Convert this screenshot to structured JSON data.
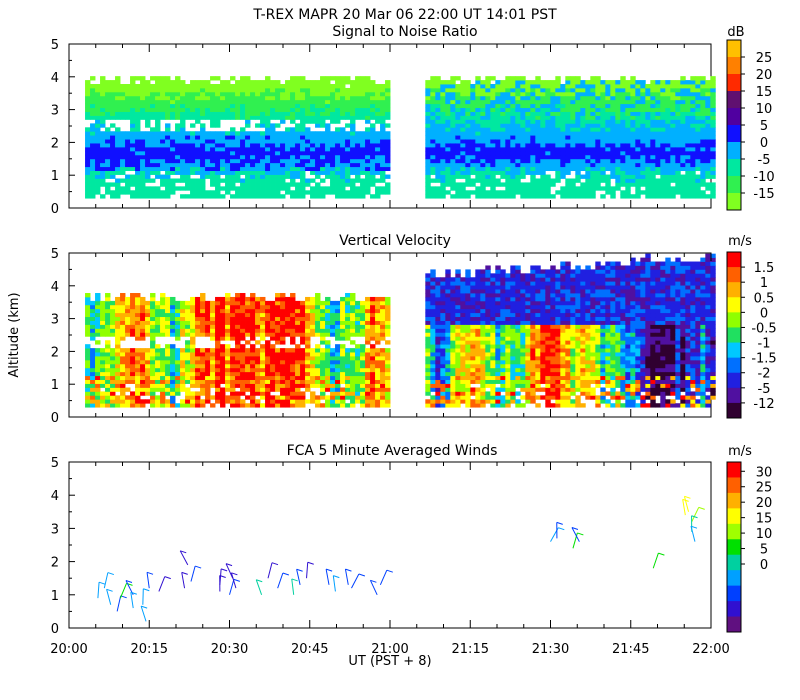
{
  "header": {
    "title": "T-REX   MAPR 20 Mar 06   22:00 UT   14:01   PST"
  },
  "chart_data": [
    {
      "type": "heatmap",
      "title": "Signal to Noise Ratio",
      "ylim": [
        0,
        5
      ],
      "yticks": [
        "0",
        "1",
        "2",
        "3",
        "4",
        "5"
      ],
      "colorbar": {
        "unit": "dB",
        "labels": [
          "25",
          "20",
          "15",
          "10",
          "5",
          "0",
          "-5",
          "-10",
          "-15"
        ],
        "colors": [
          "#ffc000",
          "#ff8000",
          "#ff2a00",
          "#601070",
          "#5000a0",
          "#1010ff",
          "#00b0ff",
          "#00e8a0",
          "#30f050",
          "#80ff20"
        ]
      }
    },
    {
      "type": "heatmap",
      "title": "Vertical Velocity",
      "ylabel": "Altitude  (km)",
      "ylim": [
        0,
        5
      ],
      "yticks": [
        "0",
        "1",
        "2",
        "3",
        "4",
        "5"
      ],
      "colorbar": {
        "unit": "m/s",
        "labels": [
          "1.5",
          "1",
          "0.5",
          "0",
          "-0.5",
          "-1",
          "-1.5",
          "-2",
          "-5",
          "-12"
        ],
        "colors": [
          "#ff0000",
          "#ff6000",
          "#ffb000",
          "#ffff00",
          "#90ff00",
          "#20e060",
          "#00c8ff",
          "#0070ff",
          "#2020e0",
          "#5010a0",
          "#300030"
        ]
      }
    },
    {
      "type": "scatter",
      "title": "FCA 5 Minute Averaged Winds",
      "xlabel": "UT  (PST + 8)",
      "ylim": [
        0,
        5
      ],
      "yticks": [
        "0",
        "1",
        "2",
        "3",
        "4",
        "5"
      ],
      "xticks": [
        "20:00",
        "20:15",
        "20:30",
        "20:45",
        "21:00",
        "21:15",
        "21:30",
        "21:45",
        "22:00"
      ],
      "colorbar": {
        "unit": "m/s",
        "labels": [
          "30",
          "25",
          "20",
          "15",
          "10",
          "5",
          "0"
        ],
        "colors": [
          "#ff0000",
          "#ff6000",
          "#ffb000",
          "#ffff00",
          "#a0ff00",
          "#00e000",
          "#00d0a0",
          "#00a0ff",
          "#0040ff",
          "#3010d0",
          "#601080"
        ]
      },
      "barbs": [
        {
          "t": 20.09,
          "h": 0.9,
          "s": 8
        },
        {
          "t": 20.11,
          "h": 1.2,
          "s": 8
        },
        {
          "t": 20.13,
          "h": 0.7,
          "s": 9
        },
        {
          "t": 20.15,
          "h": 0.5,
          "s": 6
        },
        {
          "t": 20.16,
          "h": 0.9,
          "s": 14
        },
        {
          "t": 20.2,
          "h": 1.0,
          "s": 6
        },
        {
          "t": 20.2,
          "h": 0.6,
          "s": 8
        },
        {
          "t": 20.23,
          "h": 0.7,
          "s": 10
        },
        {
          "t": 20.24,
          "h": 0.2,
          "s": 8
        },
        {
          "t": 20.25,
          "h": 1.2,
          "s": 6
        },
        {
          "t": 20.28,
          "h": 1.1,
          "s": 4
        },
        {
          "t": 20.36,
          "h": 1.2,
          "s": 4
        },
        {
          "t": 20.37,
          "h": 1.9,
          "s": 4
        },
        {
          "t": 20.38,
          "h": 1.4,
          "s": 6
        },
        {
          "t": 20.47,
          "h": 1.1,
          "s": 4
        },
        {
          "t": 20.47,
          "h": 1.3,
          "s": 4
        },
        {
          "t": 20.5,
          "h": 1.0,
          "s": 5
        },
        {
          "t": 20.51,
          "h": 1.5,
          "s": 4
        },
        {
          "t": 20.52,
          "h": 1.2,
          "s": 3
        },
        {
          "t": 20.6,
          "h": 1.0,
          "s": 12
        },
        {
          "t": 20.62,
          "h": 1.5,
          "s": 4
        },
        {
          "t": 20.65,
          "h": 1.2,
          "s": 5
        },
        {
          "t": 20.7,
          "h": 1.0,
          "s": 12
        },
        {
          "t": 20.72,
          "h": 1.3,
          "s": 6
        },
        {
          "t": 20.74,
          "h": 1.5,
          "s": 4
        },
        {
          "t": 20.81,
          "h": 1.3,
          "s": 7
        },
        {
          "t": 20.83,
          "h": 1.1,
          "s": 8
        },
        {
          "t": 20.87,
          "h": 1.3,
          "s": 6
        },
        {
          "t": 20.88,
          "h": 1.2,
          "s": 7
        },
        {
          "t": 20.96,
          "h": 1.0,
          "s": 5
        },
        {
          "t": 20.97,
          "h": 1.3,
          "s": 7
        },
        {
          "t": 21.5,
          "h": 2.6,
          "s": 9
        },
        {
          "t": 21.52,
          "h": 2.7,
          "s": 5
        },
        {
          "t": 21.57,
          "h": 2.4,
          "s": 14
        },
        {
          "t": 21.59,
          "h": 2.6,
          "s": 5
        },
        {
          "t": 21.82,
          "h": 1.8,
          "s": 14
        },
        {
          "t": 21.92,
          "h": 3.4,
          "s": 20
        },
        {
          "t": 21.93,
          "h": 3.5,
          "s": 21
        },
        {
          "t": 21.94,
          "h": 3.2,
          "s": 19
        },
        {
          "t": 21.94,
          "h": 2.9,
          "s": 12
        },
        {
          "t": 21.95,
          "h": 2.6,
          "s": 10
        }
      ]
    }
  ]
}
